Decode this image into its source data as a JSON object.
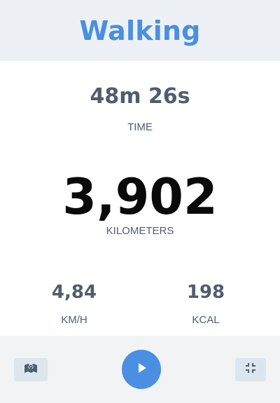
{
  "header": {
    "title": "Walking"
  },
  "stats": {
    "time": {
      "value": "48m 26s",
      "label": "TIME"
    },
    "distance": {
      "value": "3,902",
      "label": "KILOMETERS"
    },
    "speed": {
      "value": "4,84",
      "label": "KM/H"
    },
    "calories": {
      "value": "198",
      "label": "KCAL"
    }
  },
  "controls": {
    "left_icon": "map-marker-icon",
    "center_icon": "play-icon",
    "right_icon": "minimize-icon"
  },
  "colors": {
    "accent": "#4a8fe2",
    "text": "#4f5e6d",
    "header_bg": "#edf1f5",
    "footer_bg": "#f2f3f4",
    "button_bg": "#dde5ee"
  }
}
